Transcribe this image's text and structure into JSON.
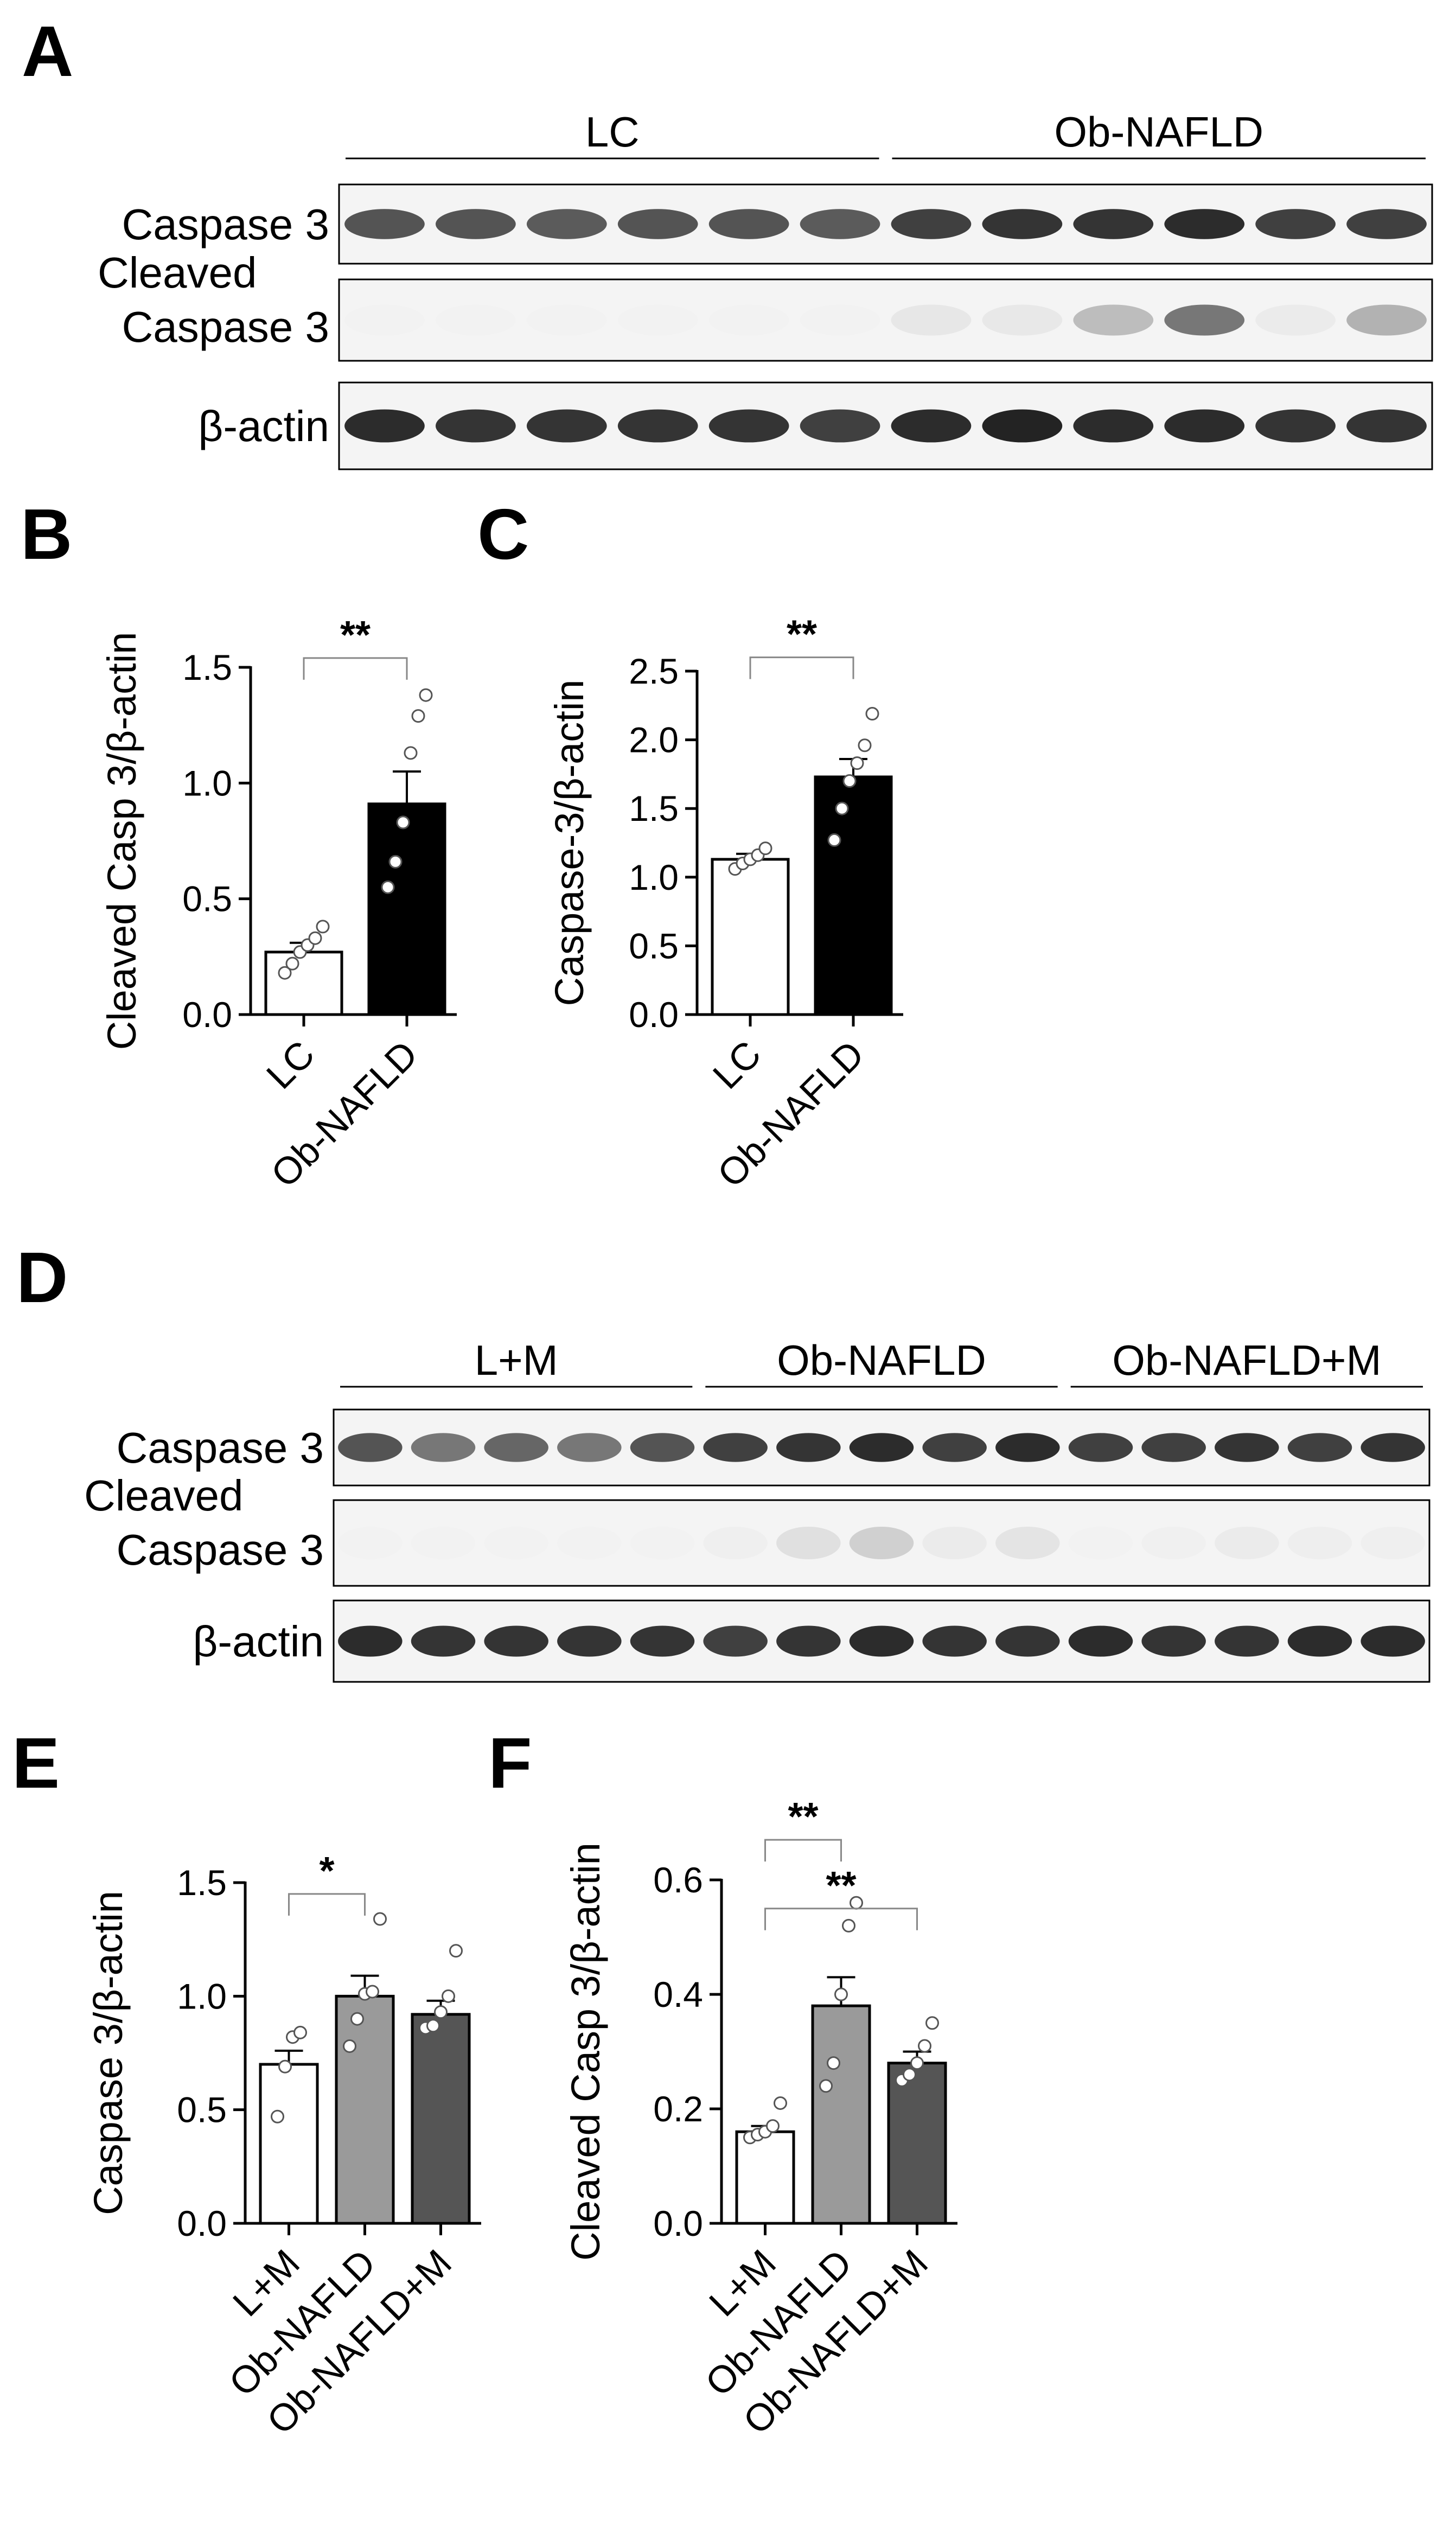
{
  "panels": {
    "A": {
      "label": "A",
      "groups": [
        {
          "name": "LC",
          "lanes": 6
        },
        {
          "name": "Ob-NAFLD",
          "lanes": 6
        }
      ],
      "rows": [
        {
          "label": "Caspase 3",
          "intensity": [
            0.8,
            0.8,
            0.78,
            0.8,
            0.8,
            0.78,
            0.85,
            0.88,
            0.88,
            0.9,
            0.85,
            0.85
          ]
        },
        {
          "label": "Cleaved\nCaspase 3",
          "intensity": [
            0.02,
            0.02,
            0.03,
            0.03,
            0.02,
            0.03,
            0.2,
            0.18,
            0.45,
            0.7,
            0.15,
            0.5
          ]
        },
        {
          "label": "β-actin",
          "intensity": [
            0.9,
            0.88,
            0.88,
            0.88,
            0.88,
            0.85,
            0.9,
            0.92,
            0.9,
            0.9,
            0.88,
            0.88
          ]
        }
      ]
    },
    "D": {
      "label": "D",
      "groups": [
        {
          "name": "L+M",
          "lanes": 5
        },
        {
          "name": "Ob-NAFLD",
          "lanes": 5
        },
        {
          "name": "Ob-NAFLD+M",
          "lanes": 5
        }
      ],
      "rows": [
        {
          "label": "Caspase 3",
          "intensity": [
            0.8,
            0.7,
            0.75,
            0.7,
            0.8,
            0.85,
            0.88,
            0.9,
            0.85,
            0.9,
            0.85,
            0.85,
            0.88,
            0.85,
            0.88
          ]
        },
        {
          "label": "Cleaved\nCaspase 3",
          "intensity": [
            0.02,
            0.02,
            0.02,
            0.02,
            0.02,
            0.1,
            0.25,
            0.35,
            0.15,
            0.22,
            0.05,
            0.08,
            0.15,
            0.12,
            0.1
          ]
        },
        {
          "label": "β-actin",
          "intensity": [
            0.9,
            0.88,
            0.88,
            0.88,
            0.88,
            0.85,
            0.88,
            0.9,
            0.88,
            0.88,
            0.9,
            0.88,
            0.88,
            0.9,
            0.9
          ]
        }
      ]
    }
  },
  "chart_data": [
    {
      "panel": "B",
      "type": "bar",
      "ylabel": "Cleaved Casp 3/β-actin",
      "categories": [
        "LC",
        "Ob-NAFLD"
      ],
      "values": [
        0.27,
        0.91
      ],
      "sem": [
        0.04,
        0.14
      ],
      "colors": [
        "#ffffff",
        "#000000"
      ],
      "points": [
        [
          0.18,
          0.22,
          0.27,
          0.3,
          0.33,
          0.38
        ],
        [
          0.55,
          0.66,
          0.83,
          1.13,
          1.29,
          1.38
        ]
      ],
      "ylim": [
        0,
        1.5
      ],
      "yticks": [
        "0.0",
        "0.5",
        "1.0",
        "1.5"
      ],
      "significance": [
        {
          "from": 0,
          "to": 1,
          "label": "**",
          "y": 1.54
        }
      ]
    },
    {
      "panel": "C",
      "type": "bar",
      "ylabel": "Caspase-3/β-actin",
      "categories": [
        "LC",
        "Ob-NAFLD"
      ],
      "values": [
        1.13,
        1.73
      ],
      "sem": [
        0.04,
        0.13
      ],
      "colors": [
        "#ffffff",
        "#000000"
      ],
      "points": [
        [
          1.06,
          1.1,
          1.13,
          1.16,
          1.21
        ],
        [
          1.27,
          1.5,
          1.7,
          1.83,
          1.96,
          2.19
        ]
      ],
      "ylim": [
        0,
        2.5
      ],
      "yticks": [
        "0.0",
        "0.5",
        "1.0",
        "1.5",
        "2.0",
        "2.5"
      ],
      "significance": [
        {
          "from": 0,
          "to": 1,
          "label": "**",
          "y": 2.6
        }
      ]
    },
    {
      "panel": "E",
      "type": "bar",
      "ylabel": "Caspase 3/β-actin",
      "categories": [
        "L+M",
        "Ob-NAFLD",
        "Ob-NAFLD+M"
      ],
      "values": [
        0.7,
        1.0,
        0.92
      ],
      "sem": [
        0.06,
        0.09,
        0.06
      ],
      "colors": [
        "#ffffff",
        "#9a9a9a",
        "#555555"
      ],
      "points": [
        [
          0.47,
          0.69,
          0.82,
          0.84
        ],
        [
          0.78,
          0.9,
          1.01,
          1.02,
          1.34
        ],
        [
          0.86,
          0.87,
          0.93,
          1.0,
          1.2
        ]
      ],
      "ylim": [
        0,
        1.5
      ],
      "yticks": [
        "0.0",
        "0.5",
        "1.0",
        "1.5"
      ],
      "significance": [
        {
          "from": 0,
          "to": 1,
          "label": "*",
          "y": 1.45
        }
      ]
    },
    {
      "panel": "F",
      "type": "bar",
      "ylabel": "Cleaved Casp 3/β-actin",
      "categories": [
        "L+M",
        "Ob-NAFLD",
        "Ob-NAFLD+M"
      ],
      "values": [
        0.16,
        0.38,
        0.28
      ],
      "sem": [
        0.01,
        0.05,
        0.02
      ],
      "colors": [
        "#ffffff",
        "#9a9a9a",
        "#555555"
      ],
      "points": [
        [
          0.15,
          0.155,
          0.16,
          0.17,
          0.21
        ],
        [
          0.24,
          0.28,
          0.4,
          0.52,
          0.56
        ],
        [
          0.25,
          0.26,
          0.28,
          0.31,
          0.35
        ]
      ],
      "ylim": [
        0,
        0.6
      ],
      "yticks": [
        "0.0",
        "0.2",
        "0.4",
        "0.6"
      ],
      "significance": [
        {
          "from": 0,
          "to": 1,
          "label": "**",
          "y": 0.67
        },
        {
          "from": 0,
          "to": 2,
          "label": "**",
          "y": 0.55
        }
      ]
    }
  ]
}
